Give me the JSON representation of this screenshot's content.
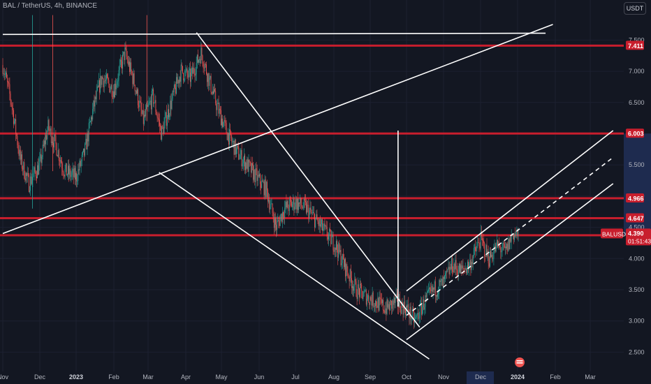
{
  "header": {
    "title": "BAL / TetherUS, 4h, BINANCE",
    "unit_button": "USDT"
  },
  "colors": {
    "background": "#131722",
    "up": "#26a69a",
    "down": "#ef5350",
    "level_line": "#c81e2d",
    "drawing": "#ffffff",
    "highlight_band": "#1e2b4f"
  },
  "chart_data": {
    "type": "candlestick",
    "symbol": "BALUSDT",
    "timeframe": "4h",
    "exchange": "BINANCE",
    "ylim": [
      2.3,
      7.8
    ],
    "y_ticks": [
      "7.500",
      "7.000",
      "6.500",
      "5.500",
      "5.000",
      "4.500",
      "4.000",
      "3.500",
      "3.000",
      "2.500"
    ],
    "x_ticks": [
      "Nov",
      "Dec",
      "2023",
      "Feb",
      "Mar",
      "Apr",
      "May",
      "Jun",
      "Jul",
      "Aug",
      "Sep",
      "Oct",
      "Nov",
      "Dec",
      "2024",
      "Feb",
      "Mar"
    ],
    "x_strong": [
      "2023",
      "2024"
    ],
    "x_range": [
      "2022-11",
      "2024-03"
    ],
    "price_levels": [
      {
        "value": 7.411,
        "label": "7.411"
      },
      {
        "value": 6.003,
        "label": "6.003"
      },
      {
        "value": 4.966,
        "label": "4.966"
      },
      {
        "value": 4.647,
        "label": "4.647"
      },
      {
        "value": 4.373,
        "label": "4.373"
      }
    ],
    "current_price": {
      "symbol": "BALUSDT",
      "value": 4.39,
      "label": "4.390",
      "countdown": "01:51:43"
    },
    "close_path": [
      [
        "2022-11-01",
        7.1
      ],
      [
        "2022-11-08",
        6.5
      ],
      [
        "2022-11-15",
        5.6
      ],
      [
        "2022-11-22",
        5.2
      ],
      [
        "2022-12-01",
        5.5
      ],
      [
        "2022-12-08",
        6.1
      ],
      [
        "2022-12-15",
        5.8
      ],
      [
        "2022-12-22",
        5.4
      ],
      [
        "2023-01-01",
        5.3
      ],
      [
        "2023-01-08",
        5.7
      ],
      [
        "2023-01-15",
        6.4
      ],
      [
        "2023-01-22",
        6.9
      ],
      [
        "2023-02-01",
        6.7
      ],
      [
        "2023-02-10",
        7.3
      ],
      [
        "2023-02-18",
        6.8
      ],
      [
        "2023-02-25",
        6.2
      ],
      [
        "2023-03-05",
        6.6
      ],
      [
        "2023-03-12",
        6.0
      ],
      [
        "2023-03-20",
        6.5
      ],
      [
        "2023-03-28",
        7.0
      ],
      [
        "2023-04-05",
        6.9
      ],
      [
        "2023-04-14",
        7.3
      ],
      [
        "2023-04-20",
        6.9
      ],
      [
        "2023-04-28",
        6.4
      ],
      [
        "2023-05-06",
        6.0
      ],
      [
        "2023-05-14",
        5.7
      ],
      [
        "2023-05-22",
        5.5
      ],
      [
        "2023-05-30",
        5.3
      ],
      [
        "2023-06-07",
        5.1
      ],
      [
        "2023-06-15",
        4.5
      ],
      [
        "2023-06-22",
        4.8
      ],
      [
        "2023-07-01",
        4.9
      ],
      [
        "2023-07-10",
        4.8
      ],
      [
        "2023-07-18",
        4.6
      ],
      [
        "2023-07-26",
        4.4
      ],
      [
        "2023-08-03",
        4.2
      ],
      [
        "2023-08-12",
        3.8
      ],
      [
        "2023-08-20",
        3.5
      ],
      [
        "2023-08-28",
        3.4
      ],
      [
        "2023-09-06",
        3.3
      ],
      [
        "2023-09-14",
        3.2
      ],
      [
        "2023-09-22",
        3.3
      ],
      [
        "2023-10-01",
        3.2
      ],
      [
        "2023-10-08",
        3.0
      ],
      [
        "2023-10-16",
        3.3
      ],
      [
        "2023-10-24",
        3.5
      ],
      [
        "2023-11-01",
        3.6
      ],
      [
        "2023-11-08",
        3.9
      ],
      [
        "2023-11-15",
        3.8
      ],
      [
        "2023-11-22",
        3.9
      ],
      [
        "2023-12-01",
        4.3
      ],
      [
        "2023-12-08",
        4.0
      ],
      [
        "2023-12-15",
        4.2
      ],
      [
        "2023-12-22",
        4.1
      ],
      [
        "2023-12-28",
        4.4
      ],
      [
        "2024-01-02",
        4.39
      ]
    ],
    "trend_lines": [
      {
        "name": "upper-horizontal",
        "from": [
          "2022-11-01",
          7.59
        ],
        "to": [
          "2024-01-24",
          7.61
        ]
      },
      {
        "name": "long-ascending",
        "from": [
          "2022-11-01",
          4.4
        ],
        "to": [
          "2024-01-30",
          7.75
        ]
      },
      {
        "name": "downtrend-line",
        "from": [
          "2023-04-10",
          7.62
        ],
        "to": [
          "2023-10-12",
          2.9
        ]
      },
      {
        "name": "lower-descending",
        "from": [
          "2023-03-10",
          5.38
        ],
        "to": [
          "2023-10-20",
          2.39
        ]
      },
      {
        "name": "vertical-marker",
        "from": [
          "2023-09-24",
          6.05
        ],
        "to": [
          "2023-09-24",
          3.23
        ]
      },
      {
        "name": "channel-upper",
        "from": [
          "2023-10-01",
          3.48
        ],
        "to": [
          "2024-03-20",
          6.05
        ]
      },
      {
        "name": "channel-lower",
        "from": [
          "2023-10-01",
          2.7
        ],
        "to": [
          "2024-03-20",
          5.2
        ]
      },
      {
        "name": "channel-mid-dashed",
        "from": [
          "2023-10-01",
          3.09
        ],
        "to": [
          "2024-03-20",
          5.62
        ]
      }
    ]
  }
}
